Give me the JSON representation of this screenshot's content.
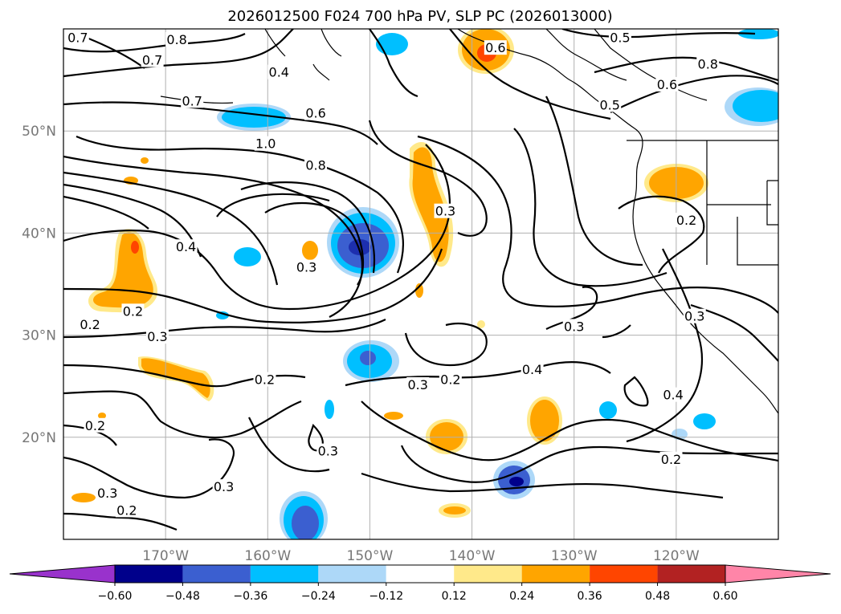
{
  "title": "2026012500 F024 700 hPa PV, SLP PC (2026013000)",
  "map": {
    "lon_range": [
      -180,
      -110
    ],
    "lat_range": [
      10,
      60
    ],
    "x_ticks": [
      {
        "lon": -170,
        "label": "170°W"
      },
      {
        "lon": -160,
        "label": "160°W"
      },
      {
        "lon": -150,
        "label": "150°W"
      },
      {
        "lon": -140,
        "label": "140°W"
      },
      {
        "lon": -130,
        "label": "130°W"
      },
      {
        "lon": -120,
        "label": "120°W"
      }
    ],
    "y_ticks": [
      {
        "lat": 20,
        "label": "20°N"
      },
      {
        "lat": 30,
        "label": "30°N"
      },
      {
        "lat": 40,
        "label": "40°N"
      },
      {
        "lat": 50,
        "label": "50°N"
      }
    ],
    "contour_labels": [
      {
        "text": "0.7",
        "lon": -178.6,
        "lat": 59.1
      },
      {
        "text": "0.8",
        "lon": -168.9,
        "lat": 58.9
      },
      {
        "text": "0.7",
        "lon": -171.3,
        "lat": 56.9
      },
      {
        "text": "0.4",
        "lon": -158.9,
        "lat": 55.7
      },
      {
        "text": "0.7",
        "lon": -167.4,
        "lat": 52.9
      },
      {
        "text": "0.6",
        "lon": -155.3,
        "lat": 51.7
      },
      {
        "text": "1.0",
        "lon": -160.2,
        "lat": 48.7
      },
      {
        "text": "0.8",
        "lon": -155.3,
        "lat": 46.6
      },
      {
        "text": "0.4",
        "lon": -168.0,
        "lat": 38.6
      },
      {
        "text": "0.3",
        "lon": -156.2,
        "lat": 36.6
      },
      {
        "text": "0.2",
        "lon": -173.2,
        "lat": 32.3
      },
      {
        "text": "0.2",
        "lon": -177.4,
        "lat": 31.0
      },
      {
        "text": "0.3",
        "lon": -170.8,
        "lat": 29.8
      },
      {
        "text": "0.3",
        "lon": -142.6,
        "lat": 42.1
      },
      {
        "text": "0.6",
        "lon": -137.7,
        "lat": 58.1
      },
      {
        "text": "0.5",
        "lon": -125.5,
        "lat": 59.1
      },
      {
        "text": "0.5",
        "lon": -126.5,
        "lat": 52.5
      },
      {
        "text": "0.6",
        "lon": -120.9,
        "lat": 54.5
      },
      {
        "text": "0.8",
        "lon": -116.9,
        "lat": 56.5
      },
      {
        "text": "0.2",
        "lon": -119.0,
        "lat": 41.2
      },
      {
        "text": "0.3",
        "lon": -130.0,
        "lat": 30.8
      },
      {
        "text": "0.3",
        "lon": -118.2,
        "lat": 31.8
      },
      {
        "text": "0.4",
        "lon": -134.1,
        "lat": 26.6
      },
      {
        "text": "0.2",
        "lon": -142.1,
        "lat": 25.6
      },
      {
        "text": "0.3",
        "lon": -145.3,
        "lat": 25.1
      },
      {
        "text": "0.2",
        "lon": -160.3,
        "lat": 25.6
      },
      {
        "text": "0.4",
        "lon": -120.3,
        "lat": 24.1
      },
      {
        "text": "0.2",
        "lon": -176.9,
        "lat": 21.1
      },
      {
        "text": "0.3",
        "lon": -154.1,
        "lat": 18.6
      },
      {
        "text": "0.2",
        "lon": -120.5,
        "lat": 17.8
      },
      {
        "text": "0.3",
        "lon": -164.3,
        "lat": 15.1
      },
      {
        "text": "0.3",
        "lon": -175.7,
        "lat": 14.5
      },
      {
        "text": "0.2",
        "lon": -173.8,
        "lat": 12.8
      }
    ]
  },
  "colorbar": {
    "ticks": [
      "−0.60",
      "−0.48",
      "−0.36",
      "−0.24",
      "−0.12",
      "0.12",
      "0.24",
      "0.36",
      "0.48",
      "0.60"
    ],
    "colors": [
      "#9932cc",
      "#00008b",
      "#3b5fd0",
      "#00bfff",
      "#add8f8",
      "#ffffff",
      "#ffe98a",
      "#ffa500",
      "#ff4500",
      "#b22222",
      "#ff85a8"
    ]
  }
}
